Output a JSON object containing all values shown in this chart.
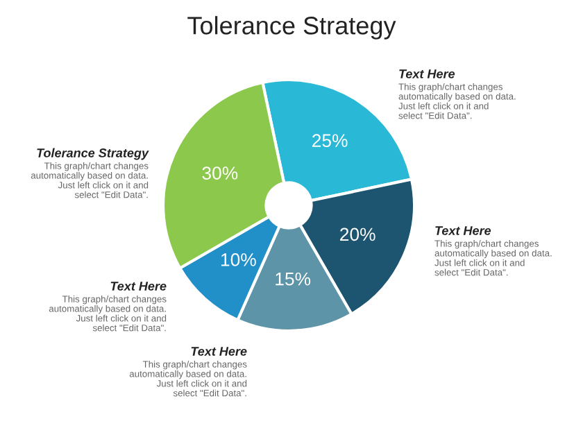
{
  "chart_data": {
    "type": "donut",
    "title": "Tolerance Strategy",
    "categories": [
      null,
      null,
      null,
      null,
      null
    ],
    "values": [
      25,
      20,
      15,
      10,
      30
    ],
    "colors": [
      "#29b8d6",
      "#1d5470",
      "#5e94a8",
      "#2290c8",
      "#8cc84b"
    ],
    "value_labels": [
      "25%",
      "20%",
      "15%",
      "10%",
      "30%"
    ],
    "annotations": [
      "Text Here",
      "This graph/chart changes\nautomatically based on data.\nJust left click on it and\nselect \"Edit Data\".",
      "Tolerance Strategy",
      "This graph/chart changes\nautomatically based on data.\nJust left click on it and\nselect \"Edit Data\".",
      "Text Here",
      "This graph/chart changes\nautomatically based on data.\nJust left click on it and\nselect \"Edit Data\".",
      "Text Here",
      "This graph/chart changes\nautomatically based on data.\nJust left click on it and\nselect \"Edit Data\".",
      "Text Here",
      "This graph/chart changes\nautomatically based on data.\nJust left click on it and\nselect \"Edit Data\"."
    ]
  }
}
